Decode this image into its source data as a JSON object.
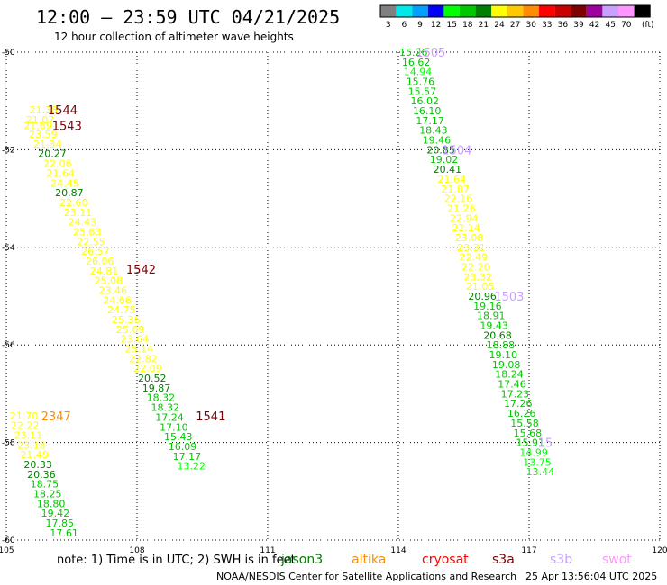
{
  "chart_data": {
    "type": "scatter",
    "title": "12:00 – 23:59 UTC 04/21/2025",
    "subtitle": "12 hour collection of altimeter wave heights",
    "xlim": [
      105,
      120
    ],
    "ylim": [
      -60,
      -50
    ],
    "x_ticks": [
      {
        "value": 105,
        "label": "105"
      },
      {
        "value": 108,
        "label": "108"
      },
      {
        "value": 111,
        "label": "111"
      },
      {
        "value": 114,
        "label": "114"
      },
      {
        "value": 117,
        "label": "117"
      },
      {
        "value": 120,
        "label": "120"
      }
    ],
    "y_ticks": [
      {
        "value": -50,
        "label": "-50"
      },
      {
        "value": -52,
        "label": "-52"
      },
      {
        "value": -54,
        "label": "-54"
      },
      {
        "value": -56,
        "label": "-56"
      },
      {
        "value": -58,
        "label": "-58"
      },
      {
        "value": -60,
        "label": "-60"
      }
    ],
    "grid": true,
    "colorbar": {
      "unit": "(ft)",
      "levels": [
        {
          "label": "3",
          "color": "#808080"
        },
        {
          "label": "6",
          "color": "#00e8e8"
        },
        {
          "label": "9",
          "color": "#00a0ff"
        },
        {
          "label": "12",
          "color": "#0000ff"
        },
        {
          "label": "15",
          "color": "#00ff00"
        },
        {
          "label": "18",
          "color": "#00c800"
        },
        {
          "label": "21",
          "color": "#008000"
        },
        {
          "label": "24",
          "color": "#ffff00"
        },
        {
          "label": "27",
          "color": "#ffc800"
        },
        {
          "label": "30",
          "color": "#ff8c00"
        },
        {
          "label": "33",
          "color": "#ff0000"
        },
        {
          "label": "36",
          "color": "#c80000"
        },
        {
          "label": "39",
          "color": "#800000"
        },
        {
          "label": "42",
          "color": "#a000a0"
        },
        {
          "label": "45",
          "color": "#c8a0ff"
        },
        {
          "label": "70",
          "color": "#ff96ff"
        },
        {
          "label": "",
          "color": "#000000"
        }
      ]
    },
    "series": [
      {
        "name": "jason3",
        "points": [
          {
            "x": 105.53,
            "y": -51.18,
            "v": "21.38",
            "c": "#ffff00"
          },
          {
            "x": 105.45,
            "y": -51.38,
            "v": "21.07",
            "c": "#ffff00"
          },
          {
            "x": 105.4,
            "y": -51.5,
            "v": "21.69",
            "c": "#ffff00"
          },
          {
            "x": 105.52,
            "y": -51.68,
            "v": "23.59",
            "c": "#ffff00"
          },
          {
            "x": 105.62,
            "y": -51.88,
            "v": "21.34",
            "c": "#ffff00"
          },
          {
            "x": 105.73,
            "y": -52.08,
            "v": "20.27",
            "c": "#008000"
          },
          {
            "x": 105.85,
            "y": -52.28,
            "v": "22.06",
            "c": "#ffff00"
          },
          {
            "x": 105.92,
            "y": -52.48,
            "v": "21.64",
            "c": "#ffff00"
          },
          {
            "x": 106.02,
            "y": -52.68,
            "v": "24.45",
            "c": "#ffff00"
          },
          {
            "x": 106.12,
            "y": -52.88,
            "v": "20.87",
            "c": "#008000"
          },
          {
            "x": 106.22,
            "y": -53.08,
            "v": "22.60",
            "c": "#ffff00"
          },
          {
            "x": 106.32,
            "y": -53.28,
            "v": "23.11",
            "c": "#ffff00"
          },
          {
            "x": 106.42,
            "y": -53.48,
            "v": "24.43",
            "c": "#ffff00"
          },
          {
            "x": 106.53,
            "y": -53.68,
            "v": "25.63",
            "c": "#ffff00"
          },
          {
            "x": 106.62,
            "y": -53.88,
            "v": "22.55",
            "c": "#ffff00"
          },
          {
            "x": 106.72,
            "y": -54.08,
            "v": "26.57",
            "c": "#ffff00"
          },
          {
            "x": 106.82,
            "y": -54.28,
            "v": "26.06",
            "c": "#ffff00"
          },
          {
            "x": 106.92,
            "y": -54.48,
            "v": "24.81",
            "c": "#ffff00"
          },
          {
            "x": 107.02,
            "y": -54.68,
            "v": "25.08",
            "c": "#ffff00"
          },
          {
            "x": 107.12,
            "y": -54.88,
            "v": "23.46",
            "c": "#ffff00"
          },
          {
            "x": 107.22,
            "y": -55.08,
            "v": "24.66",
            "c": "#ffff00"
          },
          {
            "x": 107.32,
            "y": -55.28,
            "v": "24.75",
            "c": "#ffff00"
          },
          {
            "x": 107.42,
            "y": -55.48,
            "v": "25.36",
            "c": "#ffff00"
          },
          {
            "x": 107.52,
            "y": -55.68,
            "v": "25.69",
            "c": "#ffff00"
          },
          {
            "x": 107.62,
            "y": -55.88,
            "v": "23.64",
            "c": "#ffff00"
          },
          {
            "x": 107.72,
            "y": -56.08,
            "v": "25.14",
            "c": "#ffff00"
          },
          {
            "x": 107.82,
            "y": -56.28,
            "v": "22.82",
            "c": "#ffff00"
          },
          {
            "x": 107.92,
            "y": -56.48,
            "v": "22.09",
            "c": "#ffff00"
          },
          {
            "x": 108.02,
            "y": -56.68,
            "v": "20.52",
            "c": "#008000"
          },
          {
            "x": 108.12,
            "y": -56.88,
            "v": "19.87",
            "c": "#008000"
          },
          {
            "x": 108.22,
            "y": -57.08,
            "v": "18.32",
            "c": "#00c800"
          },
          {
            "x": 108.32,
            "y": -57.28,
            "v": "18.32",
            "c": "#00c800"
          },
          {
            "x": 108.42,
            "y": -57.48,
            "v": "17.24",
            "c": "#00c800"
          },
          {
            "x": 108.52,
            "y": -57.68,
            "v": "17.10",
            "c": "#00c800"
          },
          {
            "x": 108.62,
            "y": -57.88,
            "v": "15.43",
            "c": "#00c800"
          },
          {
            "x": 108.72,
            "y": -58.08,
            "v": "16.09",
            "c": "#00c800"
          },
          {
            "x": 108.82,
            "y": -58.28,
            "v": "17.17",
            "c": "#00c800"
          },
          {
            "x": 108.92,
            "y": -58.48,
            "v": "13.22",
            "c": "#00ff00"
          }
        ]
      },
      {
        "name": "altika",
        "points": [
          {
            "x": 105.08,
            "y": -57.45,
            "v": "21.70",
            "c": "#ffff00"
          },
          {
            "x": 105.1,
            "y": -57.65,
            "v": "22.22",
            "c": "#ffff00"
          },
          {
            "x": 105.18,
            "y": -57.85,
            "v": "23.11",
            "c": "#ffff00"
          },
          {
            "x": 105.25,
            "y": -58.05,
            "v": "23.18",
            "c": "#ffff00"
          },
          {
            "x": 105.32,
            "y": -58.25,
            "v": "21.49",
            "c": "#ffff00"
          },
          {
            "x": 105.4,
            "y": -58.45,
            "v": "20.33",
            "c": "#008000"
          },
          {
            "x": 105.48,
            "y": -58.65,
            "v": "20.36",
            "c": "#008000"
          },
          {
            "x": 105.55,
            "y": -58.85,
            "v": "18.75",
            "c": "#00c800"
          },
          {
            "x": 105.62,
            "y": -59.05,
            "v": "18.25",
            "c": "#00c800"
          },
          {
            "x": 105.7,
            "y": -59.25,
            "v": "18.80",
            "c": "#00c800"
          },
          {
            "x": 105.8,
            "y": -59.45,
            "v": "19.42",
            "c": "#00c800"
          },
          {
            "x": 105.9,
            "y": -59.65,
            "v": "17.85",
            "c": "#00c800"
          },
          {
            "x": 106.0,
            "y": -59.85,
            "v": "17.61",
            "c": "#00c800"
          }
        ]
      },
      {
        "name": "s3b",
        "points": [
          {
            "x": 114.02,
            "y": -50.0,
            "v": "15.26",
            "c": "#00c800"
          },
          {
            "x": 114.08,
            "y": -50.2,
            "v": "16.62",
            "c": "#00c800"
          },
          {
            "x": 114.12,
            "y": -50.4,
            "v": "14.94",
            "c": "#00ff00"
          },
          {
            "x": 114.18,
            "y": -50.6,
            "v": "15.76",
            "c": "#00c800"
          },
          {
            "x": 114.22,
            "y": -50.8,
            "v": "15.57",
            "c": "#00c800"
          },
          {
            "x": 114.28,
            "y": -51.0,
            "v": "16.02",
            "c": "#00c800"
          },
          {
            "x": 114.33,
            "y": -51.2,
            "v": "16.10",
            "c": "#00c800"
          },
          {
            "x": 114.4,
            "y": -51.4,
            "v": "17.17",
            "c": "#00c800"
          },
          {
            "x": 114.48,
            "y": -51.6,
            "v": "18.43",
            "c": "#00c800"
          },
          {
            "x": 114.55,
            "y": -51.8,
            "v": "19.46",
            "c": "#00c800"
          },
          {
            "x": 114.65,
            "y": -52.0,
            "v": "20.85",
            "c": "#008000"
          },
          {
            "x": 114.72,
            "y": -52.2,
            "v": "19.02",
            "c": "#00c800"
          },
          {
            "x": 114.8,
            "y": -52.4,
            "v": "20.41",
            "c": "#008000"
          },
          {
            "x": 114.9,
            "y": -52.6,
            "v": "21.64",
            "c": "#ffff00"
          },
          {
            "x": 114.98,
            "y": -52.8,
            "v": "21.87",
            "c": "#ffff00"
          },
          {
            "x": 115.05,
            "y": -53.0,
            "v": "22.16",
            "c": "#ffff00"
          },
          {
            "x": 115.12,
            "y": -53.2,
            "v": "21.26",
            "c": "#ffff00"
          },
          {
            "x": 115.18,
            "y": -53.4,
            "v": "22.94",
            "c": "#ffff00"
          },
          {
            "x": 115.23,
            "y": -53.6,
            "v": "22.14",
            "c": "#ffff00"
          },
          {
            "x": 115.3,
            "y": -53.8,
            "v": "23.08",
            "c": "#ffff00"
          },
          {
            "x": 115.35,
            "y": -54.0,
            "v": "23.31",
            "c": "#ffff00"
          },
          {
            "x": 115.4,
            "y": -54.2,
            "v": "22.49",
            "c": "#ffff00"
          },
          {
            "x": 115.45,
            "y": -54.4,
            "v": "22.20",
            "c": "#ffff00"
          },
          {
            "x": 115.5,
            "y": -54.6,
            "v": "23.32",
            "c": "#ffff00"
          },
          {
            "x": 115.55,
            "y": -54.8,
            "v": "21.05",
            "c": "#ffff00"
          },
          {
            "x": 115.6,
            "y": -55.0,
            "v": "20.96",
            "c": "#008000"
          },
          {
            "x": 115.72,
            "y": -55.2,
            "v": "19.16",
            "c": "#00c800"
          },
          {
            "x": 115.8,
            "y": -55.4,
            "v": "18.91",
            "c": "#00c800"
          },
          {
            "x": 115.87,
            "y": -55.6,
            "v": "19.43",
            "c": "#00c800"
          },
          {
            "x": 115.95,
            "y": -55.8,
            "v": "20.68",
            "c": "#008000"
          },
          {
            "x": 116.02,
            "y": -56.0,
            "v": "18.88",
            "c": "#00c800"
          },
          {
            "x": 116.08,
            "y": -56.2,
            "v": "19.10",
            "c": "#00c800"
          },
          {
            "x": 116.15,
            "y": -56.4,
            "v": "19.08",
            "c": "#00c800"
          },
          {
            "x": 116.22,
            "y": -56.6,
            "v": "18.24",
            "c": "#00c800"
          },
          {
            "x": 116.28,
            "y": -56.8,
            "v": "17.46",
            "c": "#00c800"
          },
          {
            "x": 116.35,
            "y": -57.0,
            "v": "17.23",
            "c": "#00c800"
          },
          {
            "x": 116.42,
            "y": -57.2,
            "v": "17.26",
            "c": "#00c800"
          },
          {
            "x": 116.5,
            "y": -57.4,
            "v": "16.26",
            "c": "#00c800"
          },
          {
            "x": 116.57,
            "y": -57.6,
            "v": "15.58",
            "c": "#00c800"
          },
          {
            "x": 116.64,
            "y": -57.8,
            "v": "15.68",
            "c": "#00c800"
          },
          {
            "x": 116.7,
            "y": -58.0,
            "v": "15.91",
            "c": "#00c800"
          },
          {
            "x": 116.78,
            "y": -58.2,
            "v": "14.99",
            "c": "#00ff00"
          },
          {
            "x": 116.86,
            "y": -58.4,
            "v": "13.75",
            "c": "#00ff00"
          },
          {
            "x": 116.93,
            "y": -58.6,
            "v": "13.44",
            "c": "#00ff00"
          }
        ]
      }
    ],
    "pass_labels": [
      {
        "x": 105.95,
        "y": -51.18,
        "label": "1544",
        "c": "#800000"
      },
      {
        "x": 106.05,
        "y": -51.5,
        "label": "1543",
        "c": "#800000"
      },
      {
        "x": 107.75,
        "y": -54.45,
        "label": "1542",
        "c": "#800000"
      },
      {
        "x": 109.35,
        "y": -57.45,
        "label": "1541",
        "c": "#800000"
      },
      {
        "x": 105.8,
        "y": -57.45,
        "label": "2347",
        "c": "#ff8c00"
      },
      {
        "x": 114.4,
        "y": -50.0,
        "label": "1505",
        "c": "#c8a0ff"
      },
      {
        "x": 115.0,
        "y": -52.0,
        "label": "1504",
        "c": "#c8a0ff"
      },
      {
        "x": 116.2,
        "y": -55.0,
        "label": "1503",
        "c": "#c8a0ff"
      },
      {
        "x": 117.2,
        "y": -58.0,
        "label": "15",
        "c": "#c8a0ff"
      }
    ]
  },
  "footer": {
    "note": "note: 1) Time is in UTC; 2) SWH is in feet",
    "satellites": [
      {
        "name": "jason3",
        "color": "#008000"
      },
      {
        "name": "altika",
        "color": "#ff8c00"
      },
      {
        "name": "cryosat",
        "color": "#ff0000"
      },
      {
        "name": "s3a",
        "color": "#800000"
      },
      {
        "name": "s3b",
        "color": "#c8a0ff"
      },
      {
        "name": "swot",
        "color": "#ff96ff"
      }
    ],
    "credit": "NOAA/NESDIS Center for Satellite Applications and Research",
    "timestamp": "25 Apr 13:56:04 UTC 2025"
  }
}
